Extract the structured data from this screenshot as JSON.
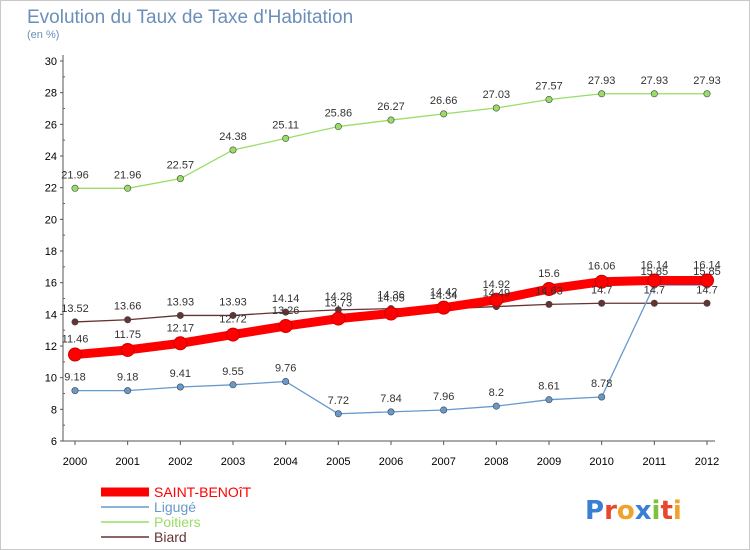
{
  "header": {
    "title": "Evolution du Taux de Taxe d'Habitation",
    "unit": "(en %)"
  },
  "logo": {
    "text": "Proxiti",
    "letters": [
      "P",
      "r",
      "o",
      "x",
      "i",
      "t",
      "i"
    ],
    "colors": [
      "#3b7fd4",
      "#e8462e",
      "#f0a32a",
      "#3b7fd4",
      "#7dc23b",
      "#e8462e",
      "#f0a32a"
    ]
  },
  "chart_data": {
    "type": "line",
    "x": [
      2000,
      2001,
      2002,
      2003,
      2004,
      2005,
      2006,
      2007,
      2008,
      2009,
      2010,
      2011,
      2012
    ],
    "ylim": [
      6,
      30
    ],
    "yticks": [
      6,
      8,
      10,
      12,
      14,
      16,
      18,
      20,
      22,
      24,
      26,
      28,
      30
    ],
    "title": "Evolution du Taux de Taxe d'Habitation",
    "ylabel": "(en %)",
    "grid": false,
    "legend": "bottom-left",
    "series": [
      {
        "name": "SAINT-BENOîT",
        "color": "#ff0000",
        "values": [
          11.46,
          11.75,
          12.17,
          12.72,
          13.26,
          13.73,
          14.05,
          14.42,
          14.92,
          15.6,
          16.06,
          16.14,
          16.14
        ]
      },
      {
        "name": "Ligugé",
        "color": "#6699cc",
        "values": [
          9.18,
          9.18,
          9.41,
          9.55,
          9.76,
          7.72,
          7.84,
          7.96,
          8.2,
          8.61,
          8.78,
          15.85,
          15.85
        ]
      },
      {
        "name": "Poitiers",
        "color": "#99dd66",
        "values": [
          21.96,
          21.96,
          22.57,
          24.38,
          25.11,
          25.86,
          26.27,
          26.66,
          27.03,
          27.57,
          27.93,
          27.93,
          27.93
        ]
      },
      {
        "name": "Biard",
        "color": "#663333",
        "values": [
          13.52,
          13.66,
          13.93,
          13.93,
          14.14,
          14.28,
          14.36,
          14.34,
          14.49,
          14.63,
          14.7,
          14.7,
          14.7
        ]
      }
    ]
  }
}
